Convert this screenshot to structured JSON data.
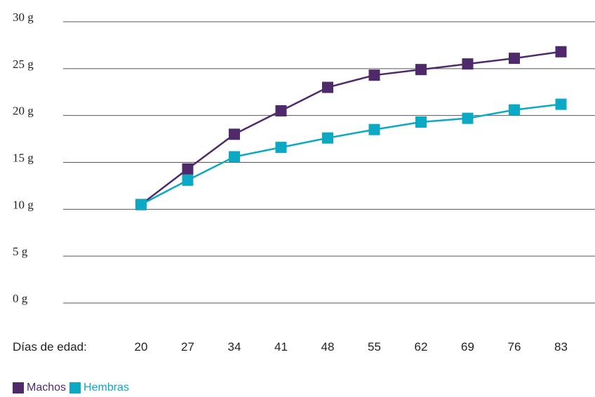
{
  "chart_data": {
    "type": "line",
    "xlabel": "Días de edad:",
    "categories": [
      "20",
      "27",
      "34",
      "41",
      "48",
      "55",
      "62",
      "69",
      "76",
      "83"
    ],
    "y_ticks": [
      "0 g",
      "5 g",
      "10 g",
      "15 g",
      "20 g",
      "25 g",
      "30 g"
    ],
    "ylim": [
      0,
      30
    ],
    "grid": true,
    "legend_placement": "bottom-left",
    "series": [
      {
        "name": "Machos",
        "color": "#4e2a6b",
        "values": [
          10.5,
          14.3,
          18.0,
          20.5,
          23.0,
          24.3,
          24.9,
          25.5,
          26.1,
          26.8
        ]
      },
      {
        "name": "Hembras",
        "color": "#0ba9c3",
        "values": [
          10.5,
          13.1,
          15.6,
          16.6,
          17.6,
          18.5,
          19.3,
          19.7,
          20.6,
          21.2
        ]
      }
    ]
  }
}
